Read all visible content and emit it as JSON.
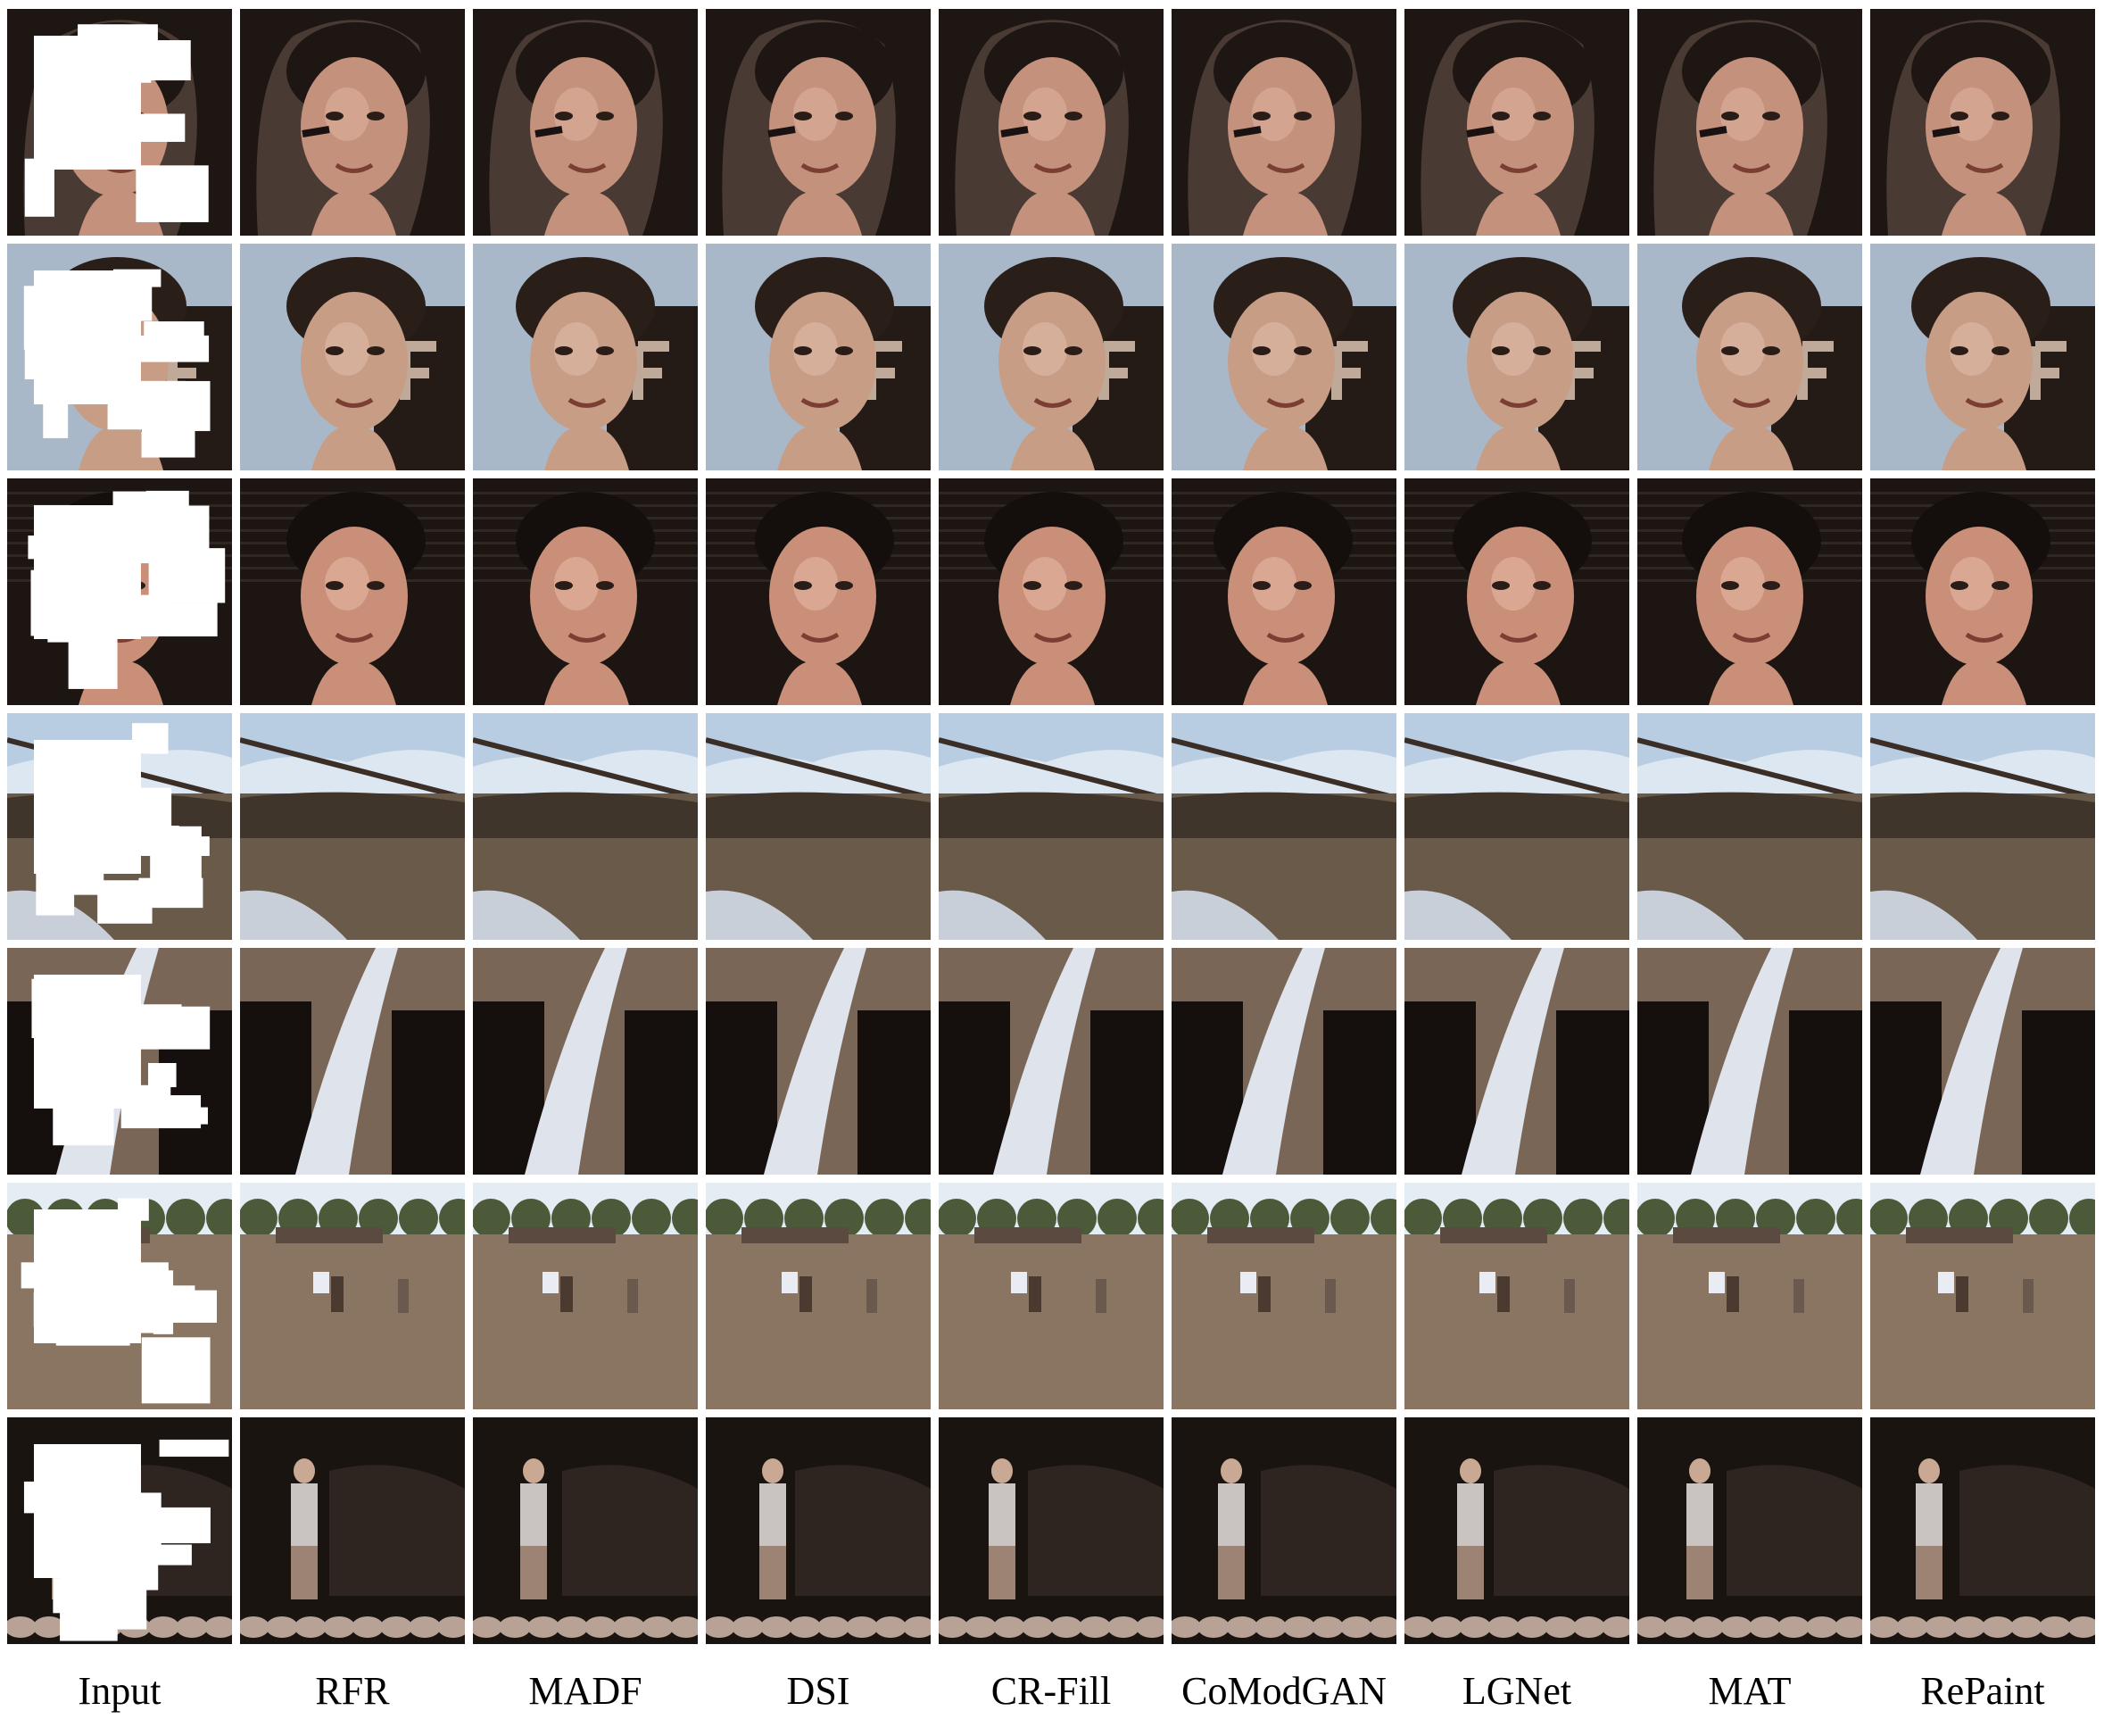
{
  "columns": [
    "Input",
    "RFR",
    "MADF",
    "DSI",
    "CR-Fill",
    "CoModGAN",
    "LGNet",
    "MAT",
    "RePaint"
  ],
  "rows": [
    {
      "scene": "face-woman-dark-hair",
      "bg": "#4a3a34",
      "main": "#c4917c",
      "accent": "#1e1612",
      "light": "#e2b7a2"
    },
    {
      "scene": "face-man-blond",
      "bg": "#a9b8c9",
      "main": "#c79d86",
      "accent": "#2a1e19",
      "light": "#e6c2ad"
    },
    {
      "scene": "face-man-smiling-dark-bg",
      "bg": "#1c1512",
      "main": "#c98f79",
      "accent": "#140f0d",
      "light": "#ecc0ab"
    },
    {
      "scene": "landscape-sky-field",
      "bg": "#b9cde2",
      "main": "#6a5a49",
      "accent": "#3f352a",
      "light": "#dde7f2"
    },
    {
      "scene": "waterfall-cliff",
      "bg": "#2b211b",
      "main": "#7a6657",
      "accent": "#15100d",
      "light": "#dfe4ec"
    },
    {
      "scene": "field-children-trees",
      "bg": "#e4ecf4",
      "main": "#8a7563",
      "accent": "#3c3024",
      "light": "#bfae9a"
    },
    {
      "scene": "person-night-rocks",
      "bg": "#1a1411",
      "main": "#5a4a40",
      "accent": "#0f0b09",
      "light": "#c9c3c2"
    }
  ]
}
